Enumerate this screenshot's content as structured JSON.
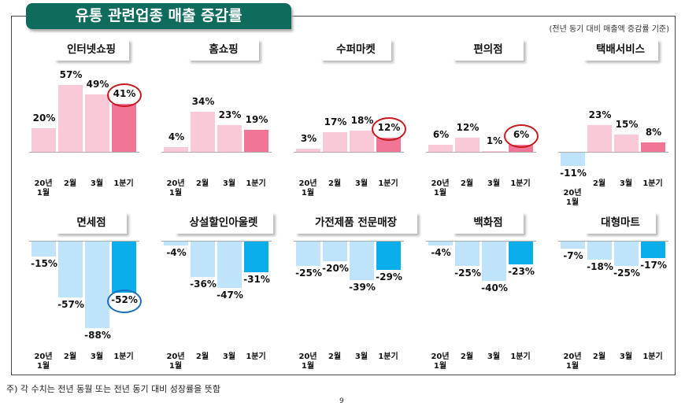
{
  "title": "유통 관련업종 매출 증감률",
  "note": "(전년 동기 대비 매출액 증감률 기준)",
  "footnote": "주) 각 수치는 전년 동월 또는 전년 동기 대비 성장률을 뜻함",
  "page_number": "9",
  "colors": {
    "pos_light": "#f9c9d7",
    "pos_strong": "#f07597",
    "neg_light": "#bfe3f8",
    "neg_strong": "#0aaeea",
    "title_bg": "#0f6b5c",
    "circle_red": "#c8191e",
    "circle_blue": "#1a6fc0"
  },
  "chart_data": {
    "type": "bar",
    "unit": "%",
    "categories": [
      "20년 1월",
      "2월",
      "3월",
      "1분기"
    ],
    "category_labels": [
      [
        "20년",
        "1월"
      ],
      [
        "2월",
        ""
      ],
      [
        "3월",
        ""
      ],
      [
        "1분기",
        ""
      ]
    ],
    "panels": [
      {
        "title": "인터넷쇼핑",
        "values": [
          20,
          57,
          49,
          41
        ],
        "labels": [
          "20%",
          "57%",
          "49%",
          "41%"
        ],
        "circled": true
      },
      {
        "title": "홈쇼핑",
        "values": [
          4,
          34,
          23,
          19
        ],
        "labels": [
          "4%",
          "34%",
          "23%",
          "19%"
        ],
        "circled": false
      },
      {
        "title": "수퍼마켓",
        "values": [
          3,
          17,
          18,
          12
        ],
        "labels": [
          "3%",
          "17%",
          "18%",
          "12%"
        ],
        "circled": true
      },
      {
        "title": "편의점",
        "values": [
          6,
          12,
          1,
          6
        ],
        "labels": [
          "6%",
          "12%",
          "1%",
          "6%"
        ],
        "circled": true
      },
      {
        "title": "택배서비스",
        "values": [
          -11,
          23,
          15,
          8
        ],
        "labels": [
          "-11%",
          "23%",
          "15%",
          "8%"
        ],
        "circled": false
      },
      {
        "title": "면세점",
        "values": [
          -15,
          -57,
          -88,
          -52
        ],
        "labels": [
          "-15%",
          "-57%",
          "-88%",
          "-52%"
        ],
        "circled": true
      },
      {
        "title": "상설할인아울렛",
        "values": [
          -4,
          -36,
          -47,
          -31
        ],
        "labels": [
          "-4%",
          "-36%",
          "-47%",
          "-31%"
        ],
        "circled": false
      },
      {
        "title": "가전제품 전문매장",
        "values": [
          -25,
          -20,
          -39,
          -29
        ],
        "labels": [
          "-25%",
          "-20%",
          "-39%",
          "-29%"
        ],
        "circled": false
      },
      {
        "title": "백화점",
        "values": [
          -4,
          -25,
          -40,
          -23
        ],
        "labels": [
          "-4%",
          "-25%",
          "-40%",
          "-23%"
        ],
        "circled": false
      },
      {
        "title": "대형마트",
        "values": [
          -7,
          -18,
          -25,
          -17
        ],
        "labels": [
          "-7%",
          "-18%",
          "-25%",
          "-17%"
        ],
        "circled": false
      }
    ]
  }
}
